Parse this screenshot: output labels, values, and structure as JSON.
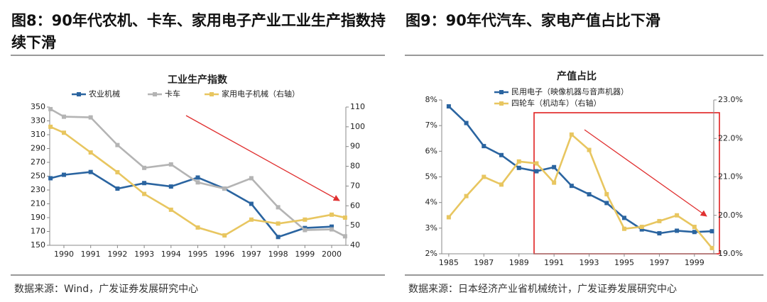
{
  "chart_data": [
    {
      "type": "line",
      "figure_title": "图8：90年代农机、卡车、家用电子产业工业生产指数持续下滑",
      "title": "工业生产指数",
      "source": "数据来源：Wind，广发证券发展研究中心",
      "x": [
        1989.5,
        1990,
        1991,
        1992,
        1993,
        1994,
        1995,
        1996,
        1997,
        1998,
        1999,
        2000,
        2000.5
      ],
      "xlim": [
        1989.47,
        2000.53
      ],
      "xticks": [
        1990,
        1991,
        1992,
        1993,
        1994,
        1995,
        1996,
        1997,
        1998,
        1999,
        2000
      ],
      "ylim": [
        150,
        350
      ],
      "yticks": [
        150,
        170,
        190,
        210,
        230,
        250,
        270,
        290,
        310,
        330,
        350
      ],
      "y2lim": [
        40,
        110
      ],
      "y2ticks": [
        40,
        50,
        60,
        70,
        80,
        90,
        100,
        110
      ],
      "grid": false,
      "series": [
        {
          "name": "农业机械",
          "color": "#2a64a0",
          "values": [
            247,
            252,
            256,
            232,
            240,
            235,
            248,
            232,
            210,
            162,
            175,
            177,
            null
          ]
        },
        {
          "name": "卡车",
          "color": "#b4b4b4",
          "values": [
            347,
            336,
            335,
            295,
            262,
            267,
            241,
            232,
            247,
            205,
            172,
            173,
            163
          ]
        },
        {
          "name": "家用电子机械（右轴）",
          "color": "#e8c660",
          "axis": "y2",
          "values": [
            100,
            97,
            87,
            77,
            66,
            58,
            49,
            45,
            53,
            51,
            53,
            55.5,
            54
          ]
        }
      ]
    },
    {
      "type": "line",
      "figure_title": "图9：90年代汽车、家电产值占比下滑",
      "title": "产值占比",
      "source": "数据来源：日本经济产业省机械统计，广发证券发展研究中心",
      "x": [
        1985,
        1986,
        1987,
        1988,
        1989,
        1990,
        1991,
        1992,
        1993,
        1994,
        1995,
        1996,
        1997,
        1998,
        1999,
        2000
      ],
      "xlim": [
        1984.6,
        2000.1
      ],
      "xticks": [
        1985,
        1987,
        1989,
        1991,
        1993,
        1995,
        1997,
        1999
      ],
      "ylim": [
        2,
        8
      ],
      "yticks": [
        {
          "value": 2,
          "label": "2%"
        },
        {
          "value": 3,
          "label": "3%"
        },
        {
          "value": 4,
          "label": "4%"
        },
        {
          "value": 5,
          "label": "5%"
        },
        {
          "value": 6,
          "label": "6%"
        },
        {
          "value": 7,
          "label": "7%"
        },
        {
          "value": 8,
          "label": "8%"
        }
      ],
      "y2lim": [
        19,
        23
      ],
      "y2ticks": [
        {
          "value": 19,
          "label": "19.0%"
        },
        {
          "value": 20,
          "label": "20.0%"
        },
        {
          "value": 21,
          "label": "21.0%"
        },
        {
          "value": 22,
          "label": "22.0%"
        },
        {
          "value": 23,
          "label": "23.0%"
        }
      ],
      "grid": false,
      "series": [
        {
          "name": "民用电子（映像机器与音声机器）",
          "color": "#2a64a0",
          "values": [
            7.75,
            7.1,
            6.2,
            5.85,
            5.35,
            5.22,
            5.38,
            4.65,
            4.32,
            3.98,
            3.4,
            2.95,
            2.8,
            2.9,
            2.85,
            2.88
          ]
        },
        {
          "name": "四轮车（机动车）（右轴）",
          "color": "#e8c660",
          "axis": "y2",
          "values": [
            19.95,
            20.5,
            21.0,
            20.8,
            21.4,
            21.35,
            20.85,
            22.1,
            21.7,
            20.55,
            19.65,
            19.7,
            19.85,
            20.0,
            19.7,
            19.15
          ]
        }
      ]
    }
  ]
}
